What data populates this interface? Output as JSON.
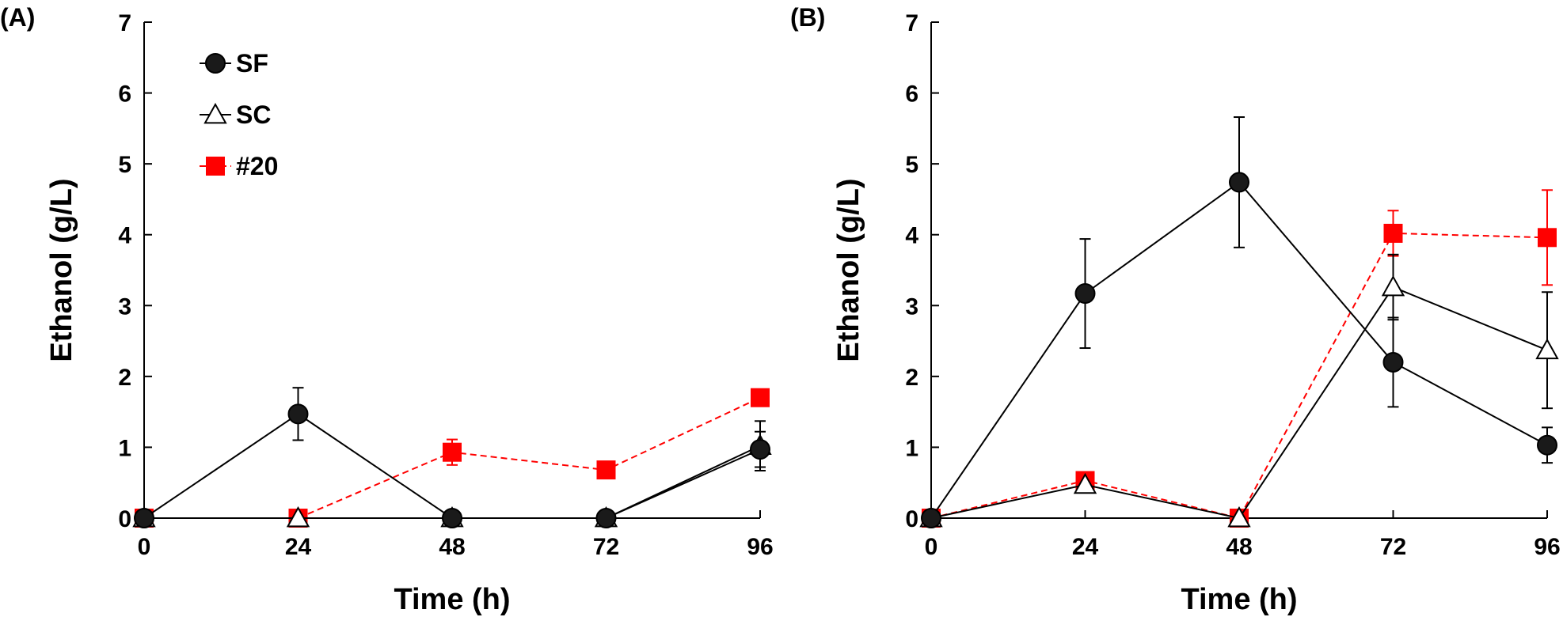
{
  "chart_data": [
    {
      "type": "line",
      "panel_label": "(A)",
      "xlabel": "Time (h)",
      "ylabel": "Ethanol (g/L)",
      "x": [
        0,
        24,
        48,
        72,
        96
      ],
      "xticks": [
        "0",
        "24",
        "48",
        "72",
        "96"
      ],
      "yticks": [
        "0",
        "1",
        "2",
        "3",
        "4",
        "5",
        "6",
        "7"
      ],
      "xlim": [
        0,
        96
      ],
      "ylim": [
        0,
        7
      ],
      "grid": false,
      "legend": "top-left",
      "series": [
        {
          "name": "SF",
          "marker": "circle",
          "color": "#000000",
          "line": "solid",
          "values": [
            0,
            1.47,
            0,
            0,
            0.97
          ],
          "errors": [
            0,
            0.37,
            0,
            0,
            0.25
          ]
        },
        {
          "name": "SC",
          "marker": "triangle",
          "color": "#000000",
          "line": "solid",
          "values": [
            0,
            0,
            0,
            0,
            1.02
          ],
          "errors": [
            0,
            0,
            0,
            0,
            0.35
          ]
        },
        {
          "name": "#20",
          "marker": "square",
          "color": "#ff0000",
          "line": "dashed",
          "values": [
            0,
            0,
            0.93,
            0.68,
            1.7
          ],
          "errors": [
            0,
            0,
            0.18,
            0,
            0
          ]
        }
      ]
    },
    {
      "type": "line",
      "panel_label": "(B)",
      "xlabel": "Time (h)",
      "ylabel": "Ethanol (g/L)",
      "x": [
        0,
        24,
        48,
        72,
        96
      ],
      "xticks": [
        "0",
        "24",
        "48",
        "72",
        "96"
      ],
      "yticks": [
        "0",
        "1",
        "2",
        "3",
        "4",
        "5",
        "6",
        "7"
      ],
      "xlim": [
        0,
        96
      ],
      "ylim": [
        0,
        7
      ],
      "grid": false,
      "series": [
        {
          "name": "SF",
          "marker": "circle",
          "color": "#000000",
          "line": "solid",
          "values": [
            0,
            3.17,
            4.74,
            2.2,
            1.03
          ],
          "errors": [
            0,
            0.77,
            0.92,
            0.63,
            0.25
          ]
        },
        {
          "name": "SC",
          "marker": "triangle",
          "color": "#000000",
          "line": "solid",
          "values": [
            0,
            0.47,
            0,
            3.26,
            2.37
          ],
          "errors": [
            0,
            0,
            0,
            0.46,
            0.82
          ]
        },
        {
          "name": "#20",
          "marker": "square",
          "color": "#ff0000",
          "line": "dashed",
          "values": [
            0,
            0.53,
            0,
            4.02,
            3.96
          ],
          "errors": [
            0,
            0,
            0,
            0.32,
            0.67
          ]
        }
      ]
    }
  ]
}
